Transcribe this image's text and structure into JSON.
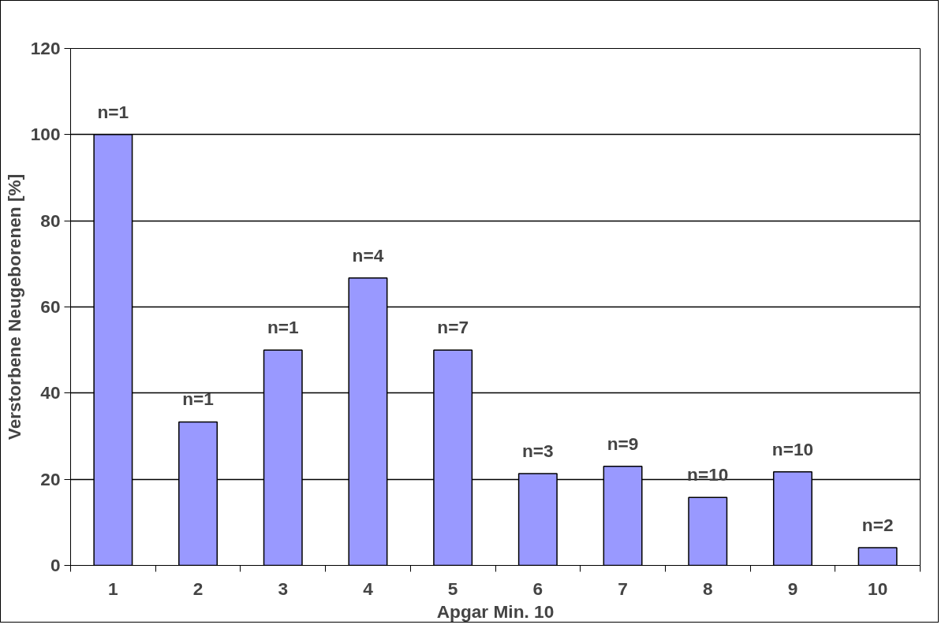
{
  "chart_data": {
    "type": "bar",
    "xlabel": "Apgar Min. 10",
    "ylabel": "Verstorbene Neugeborenen [%]",
    "categories": [
      "1",
      "2",
      "3",
      "4",
      "5",
      "6",
      "7",
      "8",
      "9",
      "10"
    ],
    "values": [
      100,
      33.3,
      50,
      66.7,
      50,
      21.3,
      23,
      15.8,
      21.7,
      4.1
    ],
    "annotations": [
      {
        "text": "n=1",
        "x": "1",
        "y": 100
      },
      {
        "text": "n=1",
        "x": "2",
        "y": 33.3
      },
      {
        "text": "n=1",
        "x": "3",
        "y": 50
      },
      {
        "text": "n=4",
        "x": "4",
        "y": 66.7
      },
      {
        "text": "n=7",
        "x": "5",
        "y": 50
      },
      {
        "text": "n=3",
        "x": "6",
        "y": 21.3
      },
      {
        "text": "n=9",
        "x": "7",
        "y": 23
      },
      {
        "text": "n=10",
        "x": "8",
        "y": 15.8
      },
      {
        "text": "n=10",
        "x": "9",
        "y": 21.7
      },
      {
        "text": "n=2",
        "x": "10",
        "y": 4.1
      }
    ],
    "color": "#9999ff",
    "ylim": [
      0,
      120
    ],
    "yticks": [
      0,
      20,
      40,
      60,
      80,
      100,
      120
    ],
    "grid": "y"
  }
}
